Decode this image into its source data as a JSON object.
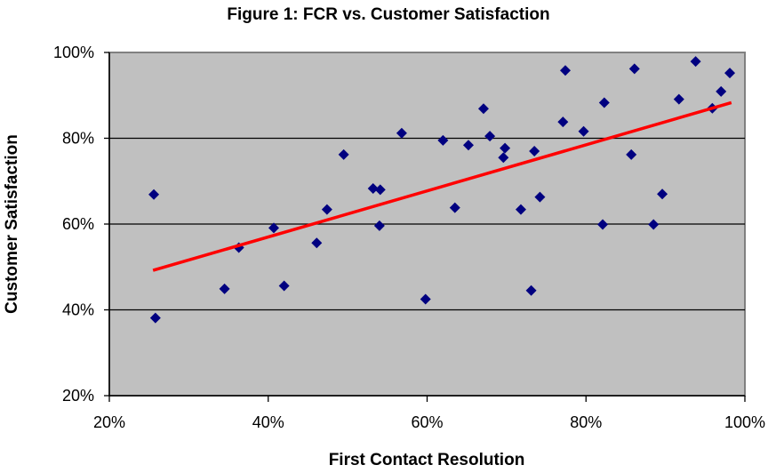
{
  "chart_data": {
    "type": "scatter",
    "title": "Figure 1: FCR vs. Customer Satisfaction",
    "xlabel": "First Contact Resolution",
    "ylabel": "Customer Satisfaction",
    "xlim": [
      20,
      100
    ],
    "ylim": [
      20,
      100
    ],
    "x_ticks": [
      "20%",
      "40%",
      "60%",
      "80%",
      "100%"
    ],
    "y_ticks": [
      "20%",
      "40%",
      "60%",
      "80%",
      "100%"
    ],
    "grid": "horizontal",
    "legend": "none",
    "plot_background": "#c0c0c0",
    "marker_color": "#000080",
    "marker": "diamond",
    "trendline": {
      "type": "linear",
      "color": "#ff0000",
      "x": [
        25.5,
        98.3
      ],
      "y": [
        49.2,
        88.3
      ]
    },
    "points": [
      {
        "x": 25.6,
        "y": 66.9
      },
      {
        "x": 25.8,
        "y": 38.1
      },
      {
        "x": 34.5,
        "y": 44.9
      },
      {
        "x": 36.3,
        "y": 54.5
      },
      {
        "x": 40.7,
        "y": 59.1
      },
      {
        "x": 42.0,
        "y": 45.6
      },
      {
        "x": 46.1,
        "y": 55.6
      },
      {
        "x": 47.4,
        "y": 63.4
      },
      {
        "x": 49.5,
        "y": 76.2
      },
      {
        "x": 53.2,
        "y": 68.3
      },
      {
        "x": 54.1,
        "y": 68.0
      },
      {
        "x": 54.0,
        "y": 59.6
      },
      {
        "x": 56.8,
        "y": 81.2
      },
      {
        "x": 59.8,
        "y": 42.5
      },
      {
        "x": 62.0,
        "y": 79.5
      },
      {
        "x": 63.5,
        "y": 63.8
      },
      {
        "x": 65.2,
        "y": 78.4
      },
      {
        "x": 67.1,
        "y": 86.9
      },
      {
        "x": 67.9,
        "y": 80.5
      },
      {
        "x": 69.8,
        "y": 77.7
      },
      {
        "x": 69.6,
        "y": 75.5
      },
      {
        "x": 71.8,
        "y": 63.4
      },
      {
        "x": 73.1,
        "y": 44.5
      },
      {
        "x": 73.5,
        "y": 77.0
      },
      {
        "x": 74.2,
        "y": 66.3
      },
      {
        "x": 77.4,
        "y": 95.8
      },
      {
        "x": 77.1,
        "y": 83.8
      },
      {
        "x": 79.7,
        "y": 81.6
      },
      {
        "x": 82.1,
        "y": 59.9
      },
      {
        "x": 82.3,
        "y": 88.3
      },
      {
        "x": 85.7,
        "y": 76.2
      },
      {
        "x": 86.1,
        "y": 96.2
      },
      {
        "x": 88.5,
        "y": 59.9
      },
      {
        "x": 89.6,
        "y": 67.0
      },
      {
        "x": 91.7,
        "y": 89.1
      },
      {
        "x": 93.8,
        "y": 97.9
      },
      {
        "x": 95.9,
        "y": 87.0
      },
      {
        "x": 97.0,
        "y": 90.9
      },
      {
        "x": 98.1,
        "y": 95.2
      }
    ]
  }
}
